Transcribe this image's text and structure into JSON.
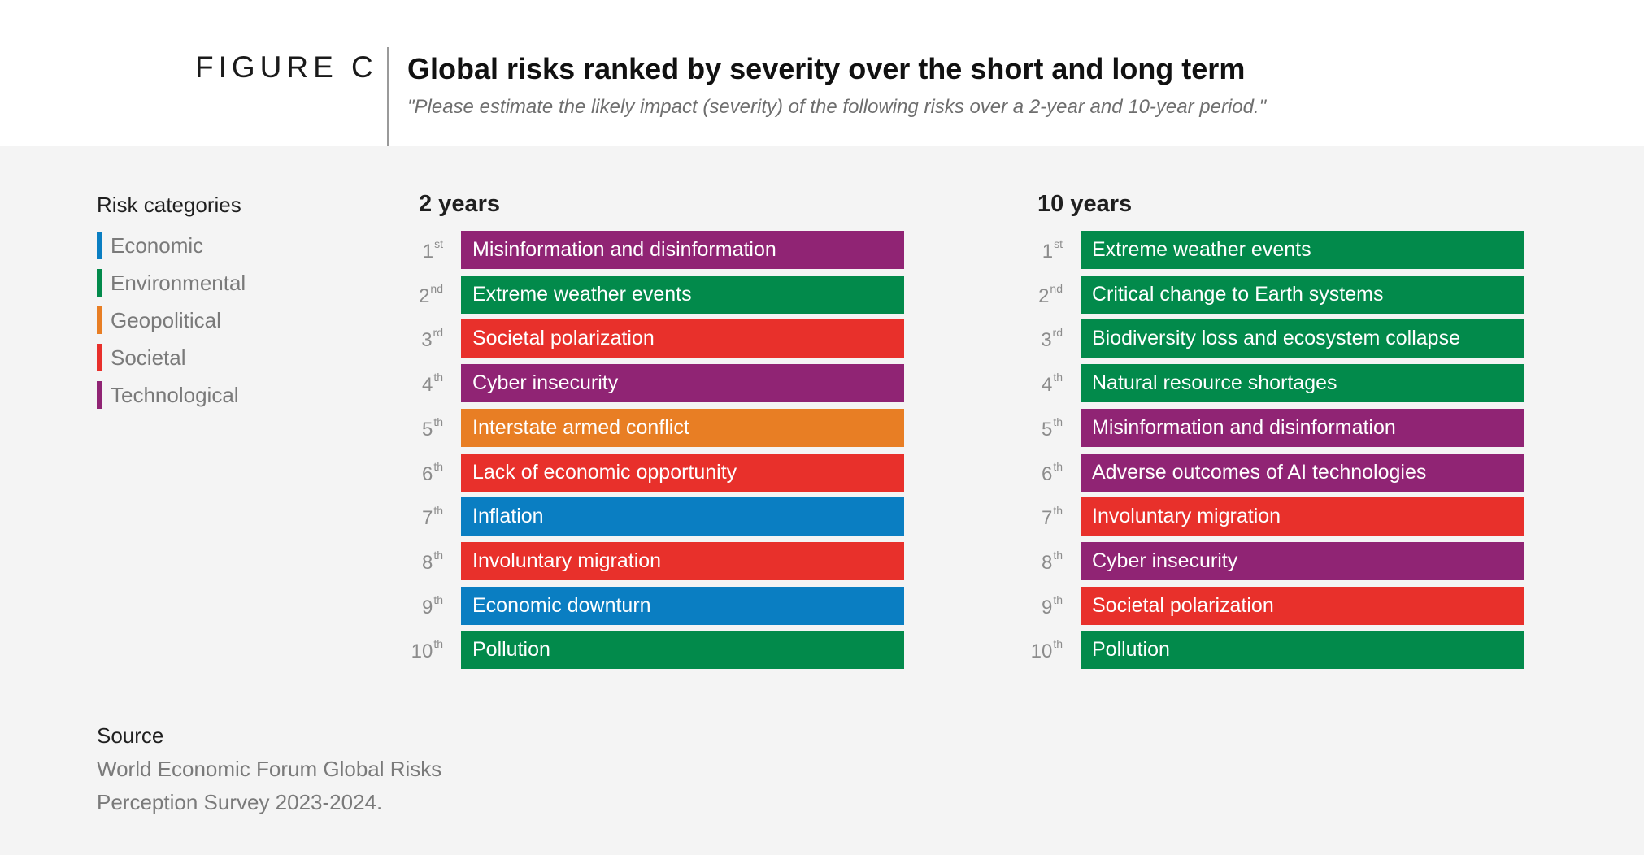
{
  "header": {
    "figure_label": "FIGURE C",
    "title": "Global risks ranked by severity over the short and long term",
    "subtitle": "\"Please estimate the likely impact (severity) of the following risks over a 2-year and 10-year period.\""
  },
  "legend": {
    "title": "Risk categories",
    "items": [
      {
        "label": "Economic",
        "color": "#0a7ec2"
      },
      {
        "label": "Environmental",
        "color": "#028a4b"
      },
      {
        "label": "Geopolitical",
        "color": "#e87e24"
      },
      {
        "label": "Societal",
        "color": "#e8302b"
      },
      {
        "label": "Technological",
        "color": "#902474"
      }
    ]
  },
  "chart_data": {
    "type": "table",
    "columns": [
      {
        "title": "2 years",
        "ranks": [
          {
            "num": "1",
            "suffix": "st",
            "label": "Misinformation and disinformation",
            "category": "Technological"
          },
          {
            "num": "2",
            "suffix": "nd",
            "label": "Extreme weather events",
            "category": "Environmental"
          },
          {
            "num": "3",
            "suffix": "rd",
            "label": "Societal polarization",
            "category": "Societal"
          },
          {
            "num": "4",
            "suffix": "th",
            "label": "Cyber insecurity",
            "category": "Technological"
          },
          {
            "num": "5",
            "suffix": "th",
            "label": "Interstate armed conflict",
            "category": "Geopolitical"
          },
          {
            "num": "6",
            "suffix": "th",
            "label": "Lack of economic opportunity",
            "category": "Societal"
          },
          {
            "num": "7",
            "suffix": "th",
            "label": "Inflation",
            "category": "Economic"
          },
          {
            "num": "8",
            "suffix": "th",
            "label": "Involuntary migration",
            "category": "Societal"
          },
          {
            "num": "9",
            "suffix": "th",
            "label": "Economic downturn",
            "category": "Economic"
          },
          {
            "num": "10",
            "suffix": "th",
            "label": "Pollution",
            "category": "Environmental"
          }
        ]
      },
      {
        "title": "10 years",
        "ranks": [
          {
            "num": "1",
            "suffix": "st",
            "label": "Extreme weather events",
            "category": "Environmental"
          },
          {
            "num": "2",
            "suffix": "nd",
            "label": "Critical change to Earth systems",
            "category": "Environmental"
          },
          {
            "num": "3",
            "suffix": "rd",
            "label": "Biodiversity loss and ecosystem collapse",
            "category": "Environmental"
          },
          {
            "num": "4",
            "suffix": "th",
            "label": "Natural resource shortages",
            "category": "Environmental"
          },
          {
            "num": "5",
            "suffix": "th",
            "label": "Misinformation and disinformation",
            "category": "Technological"
          },
          {
            "num": "6",
            "suffix": "th",
            "label": "Adverse outcomes of AI technologies",
            "category": "Technological"
          },
          {
            "num": "7",
            "suffix": "th",
            "label": "Involuntary migration",
            "category": "Societal"
          },
          {
            "num": "8",
            "suffix": "th",
            "label": "Cyber insecurity",
            "category": "Technological"
          },
          {
            "num": "9",
            "suffix": "th",
            "label": "Societal polarization",
            "category": "Societal"
          },
          {
            "num": "10",
            "suffix": "th",
            "label": "Pollution",
            "category": "Environmental"
          }
        ]
      }
    ]
  },
  "source": {
    "title": "Source",
    "text": "World Economic Forum Global Risks Perception Survey 2023-2024."
  }
}
